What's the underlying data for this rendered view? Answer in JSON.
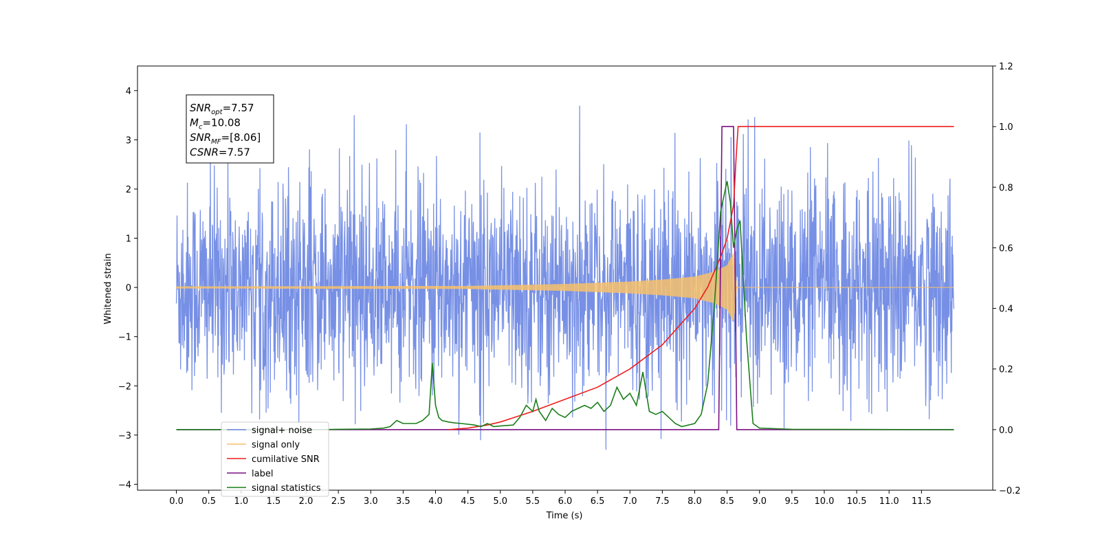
{
  "chart_data": {
    "type": "line",
    "xlabel": "Time (s)",
    "ylabel": "Whitened strain",
    "xlim": [
      -0.6,
      12.6
    ],
    "ylim": [
      -4.12,
      4.5
    ],
    "y2lim": [
      -0.2,
      1.2
    ],
    "xticks": [
      "0.0",
      "0.5",
      "1.0",
      "1.5",
      "2.0",
      "2.5",
      "3.0",
      "3.5",
      "4.0",
      "4.5",
      "5.0",
      "5.5",
      "6.0",
      "6.5",
      "7.0",
      "7.5",
      "8.0",
      "8.5",
      "9.0",
      "9.5",
      "10.0",
      "10.5",
      "11.0",
      "11.5"
    ],
    "yticks": [
      "4",
      "3",
      "2",
      "1",
      "0",
      "−1",
      "−2",
      "−3",
      "−4"
    ],
    "y2ticks": [
      "1.2",
      "1.0",
      "0.8",
      "0.6",
      "0.4",
      "0.2",
      "0.0",
      "−0.2"
    ],
    "legend_position": "lower-left",
    "annotation": {
      "lines": [
        {
          "sym": "SNR",
          "sub": "opt",
          "val": "=7.57"
        },
        {
          "sym": "M",
          "sub": "c",
          "val": "=10.08"
        },
        {
          "sym": "SNR",
          "sub": "MF",
          "val": "=[8.06]"
        },
        {
          "sym": "CSNR",
          "sub": "",
          "val": "=7.57"
        }
      ]
    },
    "series": [
      {
        "name": "signal+ noise",
        "axis": "left",
        "color": "#6b87e3",
        "note": "whitened noise ~N(0,1.1) with spikes; 0–12 s"
      },
      {
        "name": "signal only",
        "axis": "left",
        "color": "#f7c16b",
        "amplitude": [
          [
            0,
            0.02
          ],
          [
            4.5,
            0.03
          ],
          [
            6,
            0.07
          ],
          [
            7,
            0.12
          ],
          [
            7.5,
            0.16
          ],
          [
            8,
            0.22
          ],
          [
            8.3,
            0.32
          ],
          [
            8.5,
            0.45
          ],
          [
            8.6,
            0.7
          ],
          [
            8.65,
            0
          ]
        ]
      },
      {
        "name": "cumilative SNR",
        "axis": "right",
        "color": "#ee1c1c",
        "points": [
          [
            4.2,
            0.0
          ],
          [
            4.5,
            0.005
          ],
          [
            4.8,
            0.015
          ],
          [
            5.0,
            0.025
          ],
          [
            5.5,
            0.06
          ],
          [
            6.0,
            0.1
          ],
          [
            6.5,
            0.14
          ],
          [
            7.0,
            0.2
          ],
          [
            7.5,
            0.28
          ],
          [
            8.0,
            0.4
          ],
          [
            8.2,
            0.47
          ],
          [
            8.4,
            0.57
          ],
          [
            8.5,
            0.63
          ],
          [
            8.6,
            0.74
          ],
          [
            8.64,
            0.9
          ],
          [
            8.67,
            1.0
          ],
          [
            12.0,
            1.0
          ]
        ]
      },
      {
        "name": "label",
        "axis": "right",
        "color": "#7a0f82",
        "points": [
          [
            0,
            0
          ],
          [
            8.37,
            0
          ],
          [
            8.42,
            1
          ],
          [
            8.6,
            1
          ],
          [
            8.65,
            0
          ],
          [
            12,
            0
          ]
        ]
      },
      {
        "name": "signal statistics",
        "axis": "right",
        "color": "#1a7d1a",
        "points": [
          [
            0,
            0
          ],
          [
            2.2,
            0
          ],
          [
            2.5,
            0.001
          ],
          [
            3.0,
            0.002
          ],
          [
            3.2,
            0.005
          ],
          [
            3.3,
            0.01
          ],
          [
            3.4,
            0.03
          ],
          [
            3.5,
            0.02
          ],
          [
            3.7,
            0.02
          ],
          [
            3.8,
            0.03
          ],
          [
            3.9,
            0.05
          ],
          [
            3.95,
            0.22
          ],
          [
            4.0,
            0.08
          ],
          [
            4.05,
            0.04
          ],
          [
            4.1,
            0.03
          ],
          [
            4.2,
            0.025
          ],
          [
            4.3,
            0.022
          ],
          [
            4.4,
            0.02
          ],
          [
            4.6,
            0.015
          ],
          [
            4.7,
            0.01
          ],
          [
            4.8,
            0.02
          ],
          [
            4.9,
            0.01
          ],
          [
            5.0,
            0.012
          ],
          [
            5.2,
            0.015
          ],
          [
            5.3,
            0.04
          ],
          [
            5.4,
            0.08
          ],
          [
            5.5,
            0.06
          ],
          [
            5.55,
            0.1
          ],
          [
            5.6,
            0.06
          ],
          [
            5.7,
            0.03
          ],
          [
            5.8,
            0.07
          ],
          [
            5.9,
            0.05
          ],
          [
            6.0,
            0.04
          ],
          [
            6.1,
            0.06
          ],
          [
            6.2,
            0.07
          ],
          [
            6.3,
            0.08
          ],
          [
            6.4,
            0.07
          ],
          [
            6.5,
            0.09
          ],
          [
            6.6,
            0.06
          ],
          [
            6.7,
            0.08
          ],
          [
            6.8,
            0.14
          ],
          [
            6.9,
            0.1
          ],
          [
            7.0,
            0.12
          ],
          [
            7.1,
            0.08
          ],
          [
            7.2,
            0.19
          ],
          [
            7.3,
            0.06
          ],
          [
            7.4,
            0.05
          ],
          [
            7.5,
            0.06
          ],
          [
            7.6,
            0.04
          ],
          [
            7.7,
            0.02
          ],
          [
            7.8,
            0.01
          ],
          [
            8.0,
            0.02
          ],
          [
            8.1,
            0.05
          ],
          [
            8.2,
            0.15
          ],
          [
            8.3,
            0.4
          ],
          [
            8.4,
            0.72
          ],
          [
            8.5,
            0.82
          ],
          [
            8.55,
            0.75
          ],
          [
            8.6,
            0.6
          ],
          [
            8.65,
            0.66
          ],
          [
            8.7,
            0.69
          ],
          [
            8.8,
            0.3
          ],
          [
            8.9,
            0.02
          ],
          [
            9.0,
            0.005
          ],
          [
            9.5,
            0.001
          ],
          [
            11.6,
            0
          ],
          [
            12,
            0
          ]
        ]
      }
    ],
    "legend": [
      {
        "label": "signal+ noise",
        "color": "#6b87e3"
      },
      {
        "label": "signal only",
        "color": "#f7c16b"
      },
      {
        "label": "cumilative SNR",
        "color": "#ee1c1c"
      },
      {
        "label": "label",
        "color": "#7a0f82"
      },
      {
        "label": "signal statistics",
        "color": "#1a7d1a"
      }
    ]
  }
}
